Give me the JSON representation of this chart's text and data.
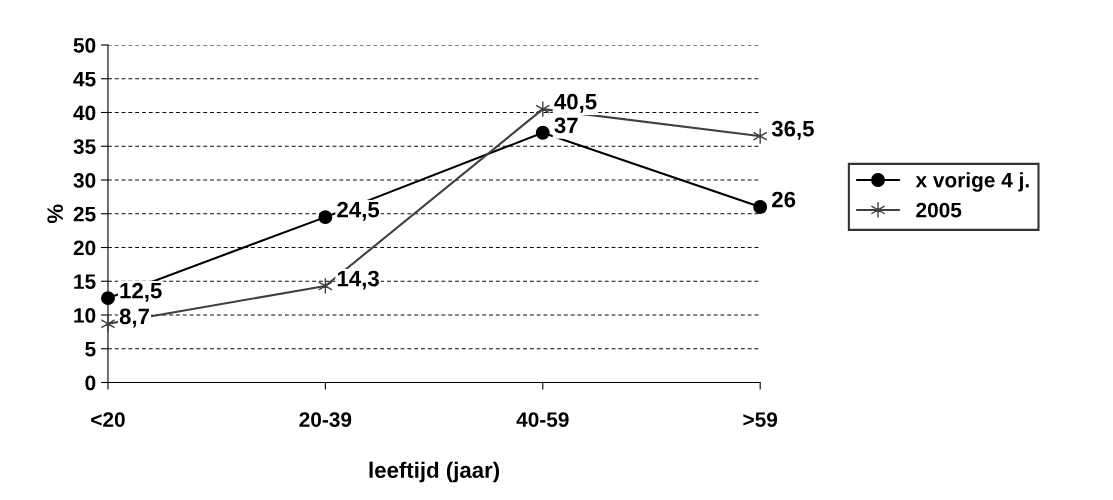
{
  "chart_data": {
    "type": "line",
    "xlabel": "leeftijd (jaar)",
    "ylabel": "%",
    "categories": [
      "<20",
      "20-39",
      "40-59",
      ">59"
    ],
    "series": [
      {
        "name": "x vorige 4 j.",
        "color": "#000000",
        "marker": "circle",
        "values": [
          12.5,
          24.5,
          37,
          26
        ],
        "value_labels": [
          "12,5",
          "24,5",
          "37",
          "26"
        ]
      },
      {
        "name": "2005",
        "color": "#404040",
        "marker": "cross",
        "values": [
          8.7,
          14.3,
          40.5,
          36.5
        ],
        "value_labels": [
          "8,7",
          "14,3",
          "40,5",
          "36,5"
        ]
      }
    ],
    "ylim": [
      0,
      50
    ],
    "yticks": [
      0,
      5,
      10,
      15,
      20,
      25,
      30,
      35,
      40,
      45,
      50
    ],
    "grid": "y",
    "legend": "right",
    "line_style": "solid"
  }
}
